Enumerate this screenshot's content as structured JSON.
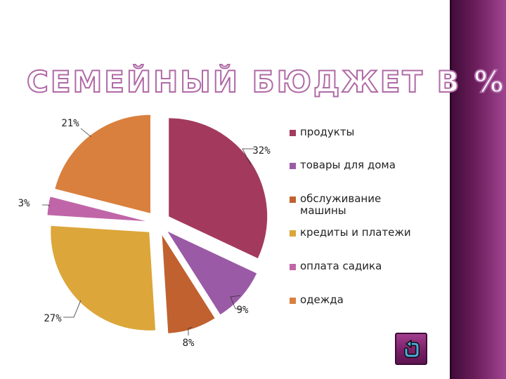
{
  "title": "СЕМЕЙНЫЙ БЮДЖЕТ В %.",
  "colors": {
    "accent": "#6a1d5a",
    "slices": [
      "#a33a5e",
      "#9b5aa6",
      "#c0612f",
      "#dca63a",
      "#c066a8",
      "#d9803e"
    ]
  },
  "chart_data": {
    "type": "pie",
    "exploded": true,
    "categories": [
      "продукты",
      "товары для дома",
      "обслуживание машины",
      "кредиты и платежи",
      "оплата садика",
      "одежда"
    ],
    "values": [
      32,
      9,
      8,
      27,
      3,
      21
    ],
    "value_labels": [
      "32%",
      "9%",
      "8%",
      "27%",
      "3%",
      "21%"
    ],
    "legend_placement": "right"
  },
  "navigation": {
    "icon": "return-arrow-icon"
  }
}
